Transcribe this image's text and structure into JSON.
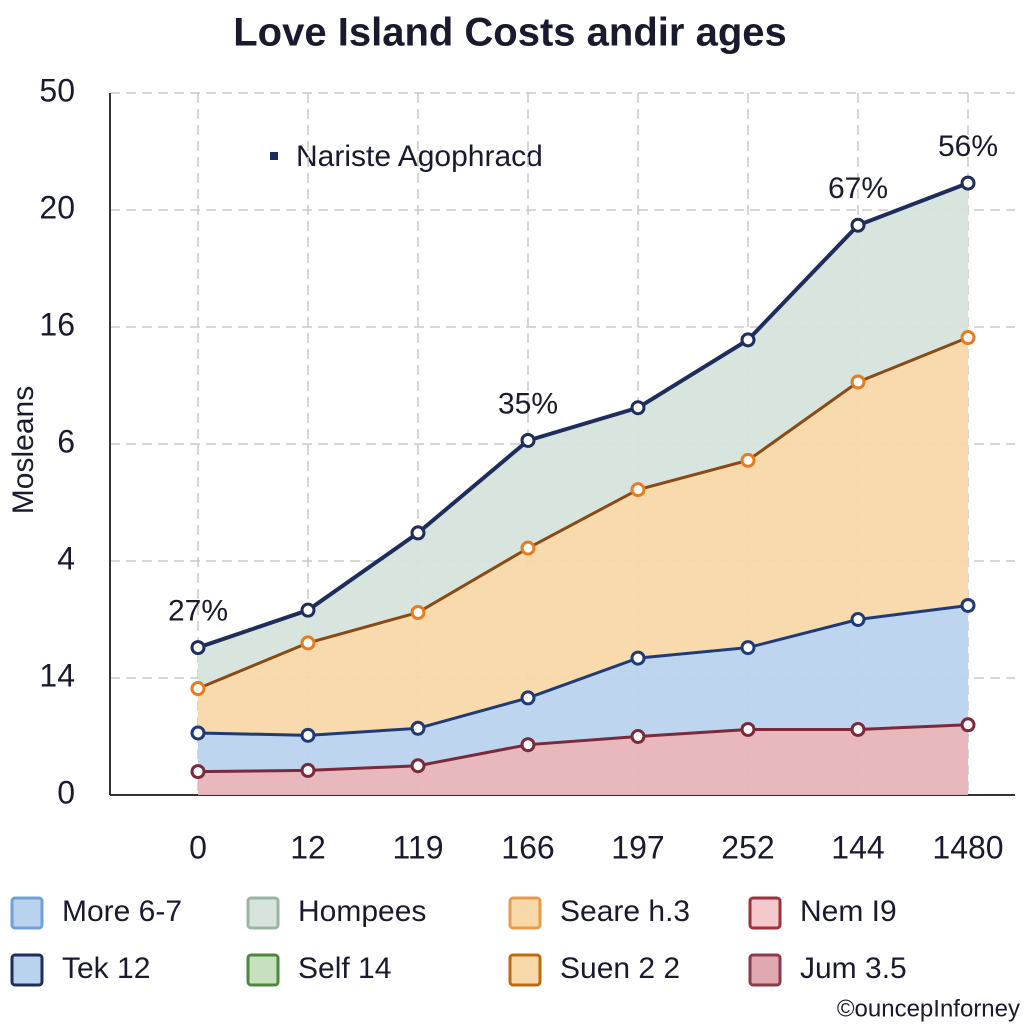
{
  "chart_data": {
    "type": "stacked-area",
    "title": "Love Island Costs andir ages",
    "ylabel": "Mosleans",
    "inner_legend": "Nariste Agophracd",
    "footer": "©ouncepInforney",
    "categories": [
      "0",
      "12",
      "119",
      "166",
      "197",
      "252",
      "144",
      "1480"
    ],
    "ylim": [
      0,
      6
    ],
    "yticks": [
      0,
      {
        "value": 1,
        "label": "14"
      },
      {
        "value": 2,
        "label": "4"
      },
      {
        "value": 3,
        "label": "6"
      },
      {
        "value": 4,
        "label": "16"
      },
      {
        "value": 5,
        "label": "20"
      },
      {
        "value": 6,
        "label": "50"
      }
    ],
    "grid": true,
    "series": [
      {
        "color": "#e8b4b8",
        "line_color": "#7a2a3a",
        "values": [
          0.2,
          0.21,
          0.25,
          0.43,
          0.5,
          0.56,
          0.56,
          0.6
        ]
      },
      {
        "color": "#b9d3ee",
        "line_color": "#1f3a78",
        "values": [
          0.33,
          0.3,
          0.32,
          0.4,
          0.67,
          0.7,
          0.94,
          1.02
        ]
      },
      {
        "color": "#f8d8a8",
        "line_color": "#8a4a14",
        "values": [
          0.38,
          0.79,
          0.99,
          1.28,
          1.44,
          1.6,
          2.03,
          2.29
        ]
      },
      {
        "color": "#d6e4dc",
        "line_color": "#1f2d5c",
        "values": [
          0.35,
          0.28,
          0.68,
          0.92,
          0.7,
          1.03,
          1.34,
          1.32
        ]
      }
    ],
    "annotations": [
      "27%",
      "35%",
      "67%",
      "56%"
    ],
    "legend": [
      {
        "label": "More 6-7",
        "fill": "#b9d3ee",
        "stroke": "#6fa0d8"
      },
      {
        "label": "Hompees",
        "fill": "#d6e4dc",
        "stroke": "#9bb5a5"
      },
      {
        "label": "Seare h.3",
        "fill": "#f8d8a8",
        "stroke": "#e89b4a"
      },
      {
        "label": "Nem I9",
        "fill": "#f4c8cc",
        "stroke": "#a0303a"
      },
      {
        "label": "Tek 12",
        "fill": "#b9d3ee",
        "stroke": "#1f2d5c"
      },
      {
        "label": "Self 14",
        "fill": "#c8e0c0",
        "stroke": "#4a8a3a"
      },
      {
        "label": "Suen 2 2",
        "fill": "#f8d8a8",
        "stroke": "#c06a10"
      },
      {
        "label": "Jum 3.5",
        "fill": "#e0a8b0",
        "stroke": "#8b3a4a"
      }
    ]
  }
}
